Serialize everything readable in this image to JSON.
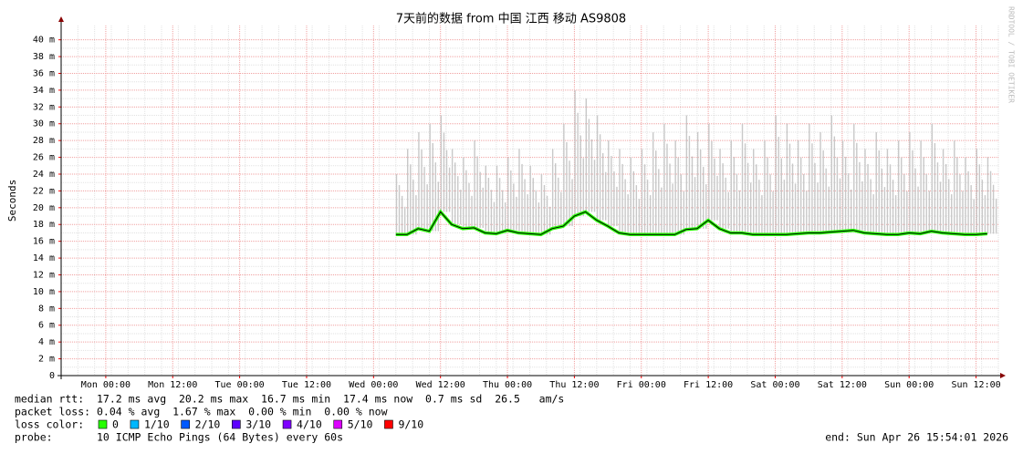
{
  "chart_data": {
    "type": "line",
    "title": "7天前的数据 from 中国 江西 移动 AS9808",
    "y_label": "Seconds",
    "watermark": "RRDTOOL / TOBI OETIKER",
    "ylim": [
      0,
      0.0417
    ],
    "yticks": [
      0,
      {
        "value": 0.002,
        "label": "2 m"
      },
      {
        "value": 0.004,
        "label": "4 m"
      },
      {
        "value": 0.006,
        "label": "6 m"
      },
      {
        "value": 0.008,
        "label": "8 m"
      },
      {
        "value": 0.01,
        "label": "10 m"
      },
      {
        "value": 0.012,
        "label": "12 m"
      },
      {
        "value": 0.014,
        "label": "14 m"
      },
      {
        "value": 0.016,
        "label": "16 m"
      },
      {
        "value": 0.018,
        "label": "18 m"
      },
      {
        "value": 0.02,
        "label": "20 m"
      },
      {
        "value": 0.022,
        "label": "22 m"
      },
      {
        "value": 0.024,
        "label": "24 m"
      },
      {
        "value": 0.026,
        "label": "26 m"
      },
      {
        "value": 0.028,
        "label": "28 m"
      },
      {
        "value": 0.03,
        "label": "30 m"
      },
      {
        "value": 0.032,
        "label": "32 m"
      },
      {
        "value": 0.034,
        "label": "34 m"
      },
      {
        "value": 0.036,
        "label": "36 m"
      },
      {
        "value": 0.038,
        "label": "38 m"
      },
      {
        "value": 0.04,
        "label": "40 m"
      }
    ],
    "grid": true,
    "x": [
      null,
      null,
      null,
      null,
      "Mon 00:00",
      null,
      null,
      null,
      null,
      null,
      "Mon 12:00",
      null,
      null,
      null,
      null,
      null,
      "Tue 00:00",
      null,
      null,
      null,
      null,
      null,
      "Tue 12:00",
      null,
      null,
      null,
      null,
      null,
      "Wed 00:00",
      null,
      null,
      null,
      null,
      null,
      "Wed 12:00",
      null,
      null,
      null,
      null,
      null,
      "Thu 00:00",
      null,
      null,
      null,
      null,
      null,
      "Thu 12:00",
      null,
      null,
      null,
      null,
      null,
      "Fri 00:00",
      null,
      null,
      null,
      null,
      null,
      "Fri 12:00",
      null,
      null,
      null,
      null,
      null,
      "Sat 00:00",
      null,
      null,
      null,
      null,
      null,
      "Sat 12:00",
      null,
      null,
      null,
      null,
      null,
      "Sun 00:00",
      null,
      null,
      null,
      null,
      null,
      "Sun 12:00",
      null
    ],
    "series": [
      {
        "color": "#c8c8c8",
        "values": [
          null,
          null,
          null,
          null,
          null,
          null,
          null,
          null,
          null,
          null,
          null,
          null,
          null,
          null,
          null,
          null,
          null,
          null,
          null,
          null,
          null,
          null,
          null,
          null,
          null,
          null,
          null,
          null,
          null,
          null,
          0.024,
          0.027,
          0.029,
          0.03,
          0.031,
          0.027,
          0.026,
          0.028,
          0.025,
          0.025,
          0.026,
          0.027,
          0.025,
          0.024,
          0.027,
          0.03,
          0.034,
          0.033,
          0.031,
          0.028,
          0.027,
          0.026,
          0.027,
          0.029,
          0.03,
          0.028,
          0.031,
          0.029,
          0.03,
          0.027,
          0.028,
          0.03,
          0.027,
          0.028,
          0.031,
          0.03,
          0.028,
          0.03,
          0.029,
          0.031,
          0.028,
          0.03,
          0.027,
          0.029,
          0.027,
          0.028,
          0.029,
          0.028,
          0.03,
          0.027,
          0.028,
          0.026,
          0.027,
          0.026
        ]
      },
      {
        "color": "#000000",
        "values": [
          null,
          null,
          null,
          null,
          null,
          null,
          null,
          null,
          null,
          null,
          null,
          null,
          null,
          null,
          null,
          null,
          null,
          null,
          null,
          null,
          null,
          null,
          null,
          null,
          null,
          null,
          null,
          null,
          null,
          null,
          0.0168,
          0.0168,
          0.0175,
          0.0172,
          0.0195,
          0.018,
          0.0175,
          0.0176,
          0.017,
          0.0169,
          0.0173,
          0.017,
          0.0169,
          0.0168,
          0.0175,
          0.0178,
          0.019,
          0.0195,
          0.0185,
          0.0178,
          0.017,
          0.0168,
          0.0168,
          0.0168,
          0.0168,
          0.0168,
          0.0174,
          0.0175,
          0.0185,
          0.0175,
          0.017,
          0.017,
          0.0168,
          0.0168,
          0.0168,
          0.0168,
          0.0169,
          0.017,
          0.017,
          0.0171,
          0.0172,
          0.0173,
          0.017,
          0.0169,
          0.0168,
          0.0168,
          0.017,
          0.0169,
          0.0172,
          0.017,
          0.0169,
          0.0168,
          0.0168,
          0.0169
        ]
      }
    ],
    "stats": [
      "median rtt:  17.2 ms avg  20.2 ms max  16.7 ms min  17.4 ms now  0.7 ms sd  26.5   am/s",
      "packet loss: 0.04 % avg  1.67 % max  0.00 % min  0.00 % now"
    ],
    "loss_label": "loss color:",
    "loss_colors": [
      {
        "label": "0",
        "color": "#26ff00"
      },
      {
        "label": "1/10",
        "color": "#00b8ff"
      },
      {
        "label": "2/10",
        "color": "#0059ff"
      },
      {
        "label": "3/10",
        "color": "#5e00ff"
      },
      {
        "label": "4/10",
        "color": "#7e00ff"
      },
      {
        "label": "5/10",
        "color": "#dd00ff"
      },
      {
        "label": "9/10",
        "color": "#ff0000"
      }
    ],
    "probe": "probe:       10 ICMP Echo Pings (64 Bytes) every 60s",
    "end": "end: Sun Apr 26 15:54:01 2026"
  }
}
